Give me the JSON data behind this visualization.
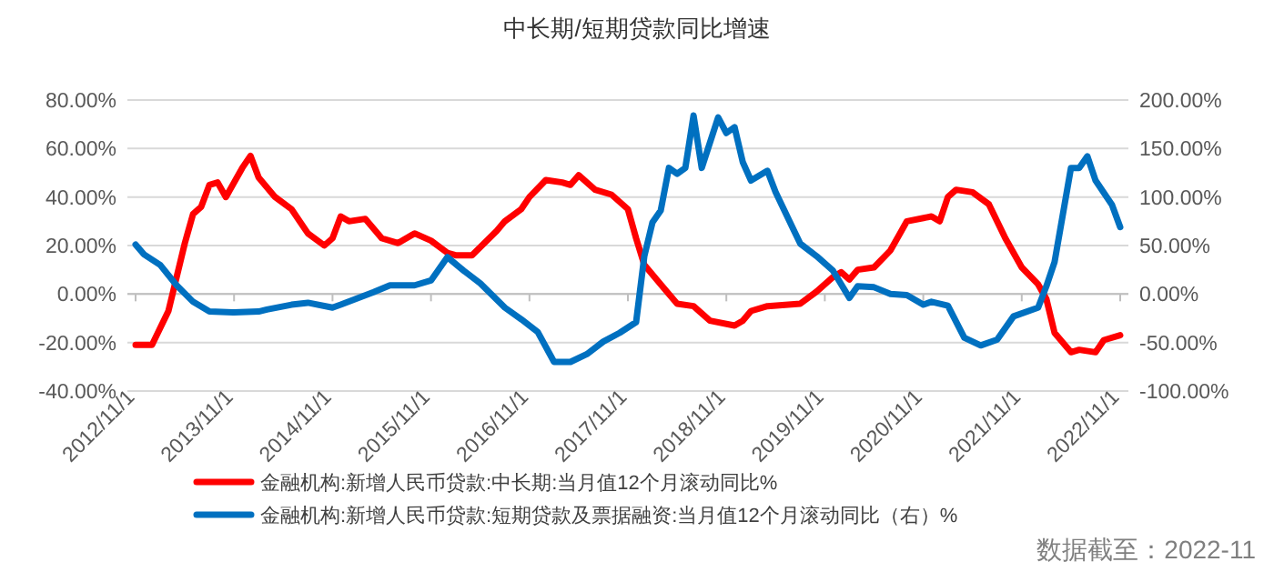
{
  "chart_data": {
    "type": "line",
    "title": "中长期/短期贷款同比增速",
    "xlim": [
      "2012-10",
      "2022-12"
    ],
    "xticks": [
      {
        "value": "2012-11",
        "label": "2012/11/1"
      },
      {
        "value": "2013-11",
        "label": "2013/11/1"
      },
      {
        "value": "2014-11",
        "label": "2014/11/1"
      },
      {
        "value": "2015-11",
        "label": "2015/11/1"
      },
      {
        "value": "2016-11",
        "label": "2016/11/1"
      },
      {
        "value": "2017-11",
        "label": "2017/11/1"
      },
      {
        "value": "2018-11",
        "label": "2018/11/1"
      },
      {
        "value": "2019-11",
        "label": "2019/11/1"
      },
      {
        "value": "2020-11",
        "label": "2020/11/1"
      },
      {
        "value": "2021-11",
        "label": "2021/11/1"
      },
      {
        "value": "2022-11",
        "label": "2022/11/1"
      }
    ],
    "ylim": [
      -40,
      80
    ],
    "yticks": [
      {
        "value": -40,
        "label": "-40.00%"
      },
      {
        "value": -20,
        "label": "-20.00%"
      },
      {
        "value": 0,
        "label": "0.00%"
      },
      {
        "value": 20,
        "label": "20.00%"
      },
      {
        "value": 40,
        "label": "40.00%"
      },
      {
        "value": 60,
        "label": "60.00%"
      },
      {
        "value": 80,
        "label": "80.00%"
      }
    ],
    "y2lim": [
      -100,
      200
    ],
    "y2ticks": [
      {
        "value": -100,
        "label": "-100.00%"
      },
      {
        "value": -50,
        "label": "-50.00%"
      },
      {
        "value": 0,
        "label": "0.00%"
      },
      {
        "value": 50,
        "label": "50.00%"
      },
      {
        "value": 100,
        "label": "100.00%"
      },
      {
        "value": 150,
        "label": "150.00%"
      },
      {
        "value": 200,
        "label": "200.00%"
      }
    ],
    "grid": "y",
    "legend": "bottom",
    "marker": "none",
    "line_style": "solid",
    "series": [
      {
        "name": "金融机构:新增人民币贷款:中长期:当月值12个月滚动同比%",
        "color": "#ff0000",
        "x": [
          "2012-11",
          "2013-01",
          "2013-03",
          "2013-05",
          "2013-06",
          "2013-07",
          "2013-08",
          "2013-09",
          "2013-10",
          "2013-12",
          "2014-01",
          "2014-02",
          "2014-04",
          "2014-06",
          "2014-08",
          "2014-10",
          "2014-11",
          "2014-12",
          "2015-01",
          "2015-03",
          "2015-05",
          "2015-07",
          "2015-09",
          "2015-11",
          "2016-01",
          "2016-02",
          "2016-04",
          "2016-07",
          "2016-08",
          "2016-10",
          "2016-11",
          "2017-01",
          "2017-03",
          "2017-04",
          "2017-05",
          "2017-07",
          "2017-09",
          "2017-11",
          "2017-12",
          "2018-01",
          "2018-03",
          "2018-05",
          "2018-07",
          "2018-09",
          "2018-12",
          "2019-01",
          "2019-02",
          "2019-04",
          "2019-08",
          "2019-10",
          "2019-12",
          "2020-01",
          "2020-02",
          "2020-03",
          "2020-05",
          "2020-07",
          "2020-09",
          "2020-12",
          "2021-01",
          "2021-02",
          "2021-03",
          "2021-05",
          "2021-07",
          "2021-09",
          "2021-11",
          "2022-01",
          "2022-02",
          "2022-03",
          "2022-05",
          "2022-06",
          "2022-08",
          "2022-09",
          "2022-11"
        ],
        "values": [
          -21,
          -21,
          -7,
          21,
          33,
          36,
          45,
          46,
          40,
          52,
          57,
          48,
          40,
          35,
          25,
          20,
          23,
          32,
          30,
          31,
          23,
          21,
          25,
          22,
          17,
          16,
          16,
          26,
          30,
          35,
          40,
          47,
          46,
          45,
          49,
          43,
          41,
          35,
          23,
          12,
          4,
          -4,
          -5,
          -11,
          -13,
          -11,
          -7,
          -5,
          -4,
          1,
          7,
          9,
          6,
          10,
          11,
          18,
          30,
          32,
          30,
          40,
          43,
          42,
          37,
          23,
          11,
          4,
          -2,
          -16,
          -24,
          -23,
          -24,
          -19,
          -17
        ]
      },
      {
        "name": "金融机构:新增人民币贷款:短期贷款及票据融资:当月值12个月滚动同比（右）%",
        "color": "#0070c0",
        "axis": "y2",
        "x": [
          "2012-11",
          "2012-12",
          "2013-02",
          "2013-04",
          "2013-06",
          "2013-08",
          "2013-11",
          "2014-02",
          "2014-03",
          "2014-06",
          "2014-08",
          "2014-11",
          "2014-12",
          "2015-04",
          "2015-06",
          "2015-09",
          "2015-11",
          "2016-01",
          "2016-03",
          "2016-05",
          "2016-08",
          "2016-10",
          "2016-12",
          "2017-02",
          "2017-04",
          "2017-06",
          "2017-08",
          "2017-10",
          "2017-12",
          "2018-01",
          "2018-02",
          "2018-03",
          "2018-04",
          "2018-05",
          "2018-06",
          "2018-07",
          "2018-08",
          "2018-10",
          "2018-11",
          "2018-12",
          "2019-01",
          "2019-02",
          "2019-04",
          "2019-05",
          "2019-08",
          "2019-10",
          "2019-12",
          "2020-02",
          "2020-03",
          "2020-05",
          "2020-07",
          "2020-09",
          "2020-11",
          "2020-12",
          "2021-02",
          "2021-04",
          "2021-06",
          "2021-08",
          "2021-10",
          "2022-01",
          "2022-02",
          "2022-03",
          "2022-05",
          "2022-06",
          "2022-07",
          "2022-08",
          "2022-10",
          "2022-11"
        ],
        "values": [
          51,
          41,
          30,
          9,
          -8,
          -18,
          -19,
          -18,
          -16,
          -11,
          -9,
          -14,
          -11,
          2,
          9,
          9,
          14,
          38,
          24,
          11,
          -14,
          -26,
          -39,
          -70,
          -70,
          -62,
          -49,
          -40,
          -29,
          39,
          74,
          86,
          130,
          124,
          130,
          184,
          130,
          182,
          166,
          172,
          136,
          117,
          127,
          105,
          52,
          39,
          24,
          -4,
          8,
          7,
          0,
          -1,
          -11,
          -8,
          -12,
          -45,
          -53,
          -47,
          -23,
          -14,
          8,
          33,
          130,
          130,
          142,
          117,
          92,
          69
        ]
      }
    ],
    "annotations": [
      "数据截至：2022-11"
    ]
  }
}
